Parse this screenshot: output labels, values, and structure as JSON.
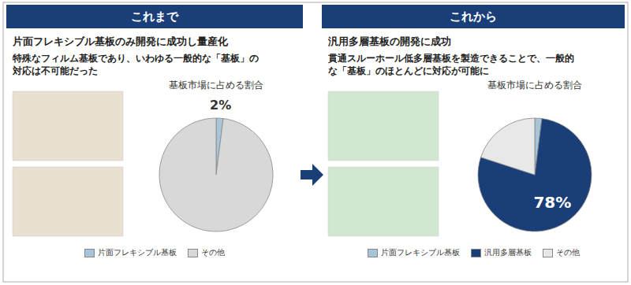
{
  "chart_data": [
    {
      "type": "pie",
      "title": "基板市場に占める割合",
      "annotations": [
        "これまで",
        "片面フレキシブル基板のみ開発に成功し量産化",
        "特殊なフィルム基板であり、いわゆる一般的な「基板」の",
        "対応は不可能だった"
      ],
      "categories": [
        "片面フレキシブル基板",
        "その他"
      ],
      "values": [
        2,
        98
      ],
      "value_labels": [
        "2%",
        null
      ],
      "data_labels": true,
      "colors": [
        "#a8c4d8",
        "#d8d8d8"
      ],
      "legend": "bottom"
    },
    {
      "type": "pie",
      "title": "基板市場に占める割合",
      "annotations": [
        "これから",
        "汎用多層基板の開発に成功",
        "貫通スルーホール低多層基板を製造できることで、一般的",
        "な「基板」のほとんどに対応が可能に"
      ],
      "categories": [
        "片面フレキシブル基板",
        "汎用多層基板",
        "その他"
      ],
      "values": [
        2,
        78,
        20
      ],
      "value_labels": [
        null,
        "78%",
        null
      ],
      "data_labels": true,
      "colors": [
        "#a8c4d8",
        "#1a3f78",
        "#e8e8e8"
      ],
      "legend": "bottom"
    }
  ]
}
